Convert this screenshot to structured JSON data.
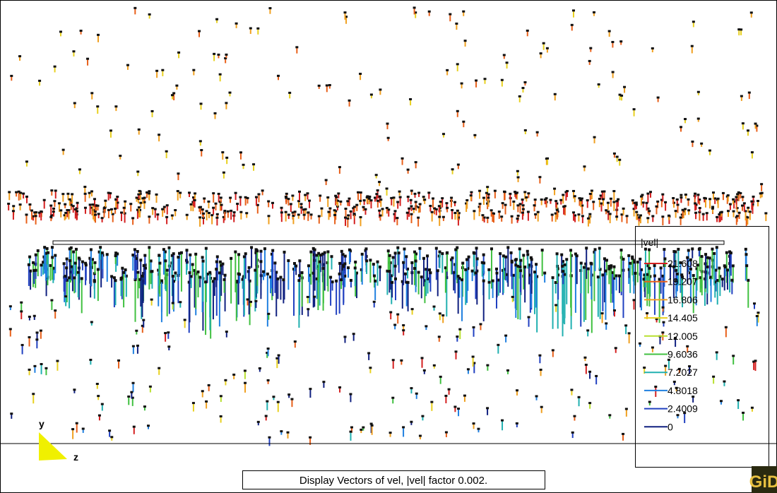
{
  "viewport": {
    "axes": {
      "y": "y",
      "z": "z"
    }
  },
  "legend": {
    "title": "|vel|",
    "items": [
      {
        "label": "21.608",
        "color": "#d42020"
      },
      {
        "label": "19.207",
        "color": "#e8601a"
      },
      {
        "label": "16.806",
        "color": "#f0a020"
      },
      {
        "label": "14.405",
        "color": "#e8d020"
      },
      {
        "label": "12.005",
        "color": "#b8e030"
      },
      {
        "label": "9.6036",
        "color": "#40c040"
      },
      {
        "label": "7.2027",
        "color": "#20b0b0"
      },
      {
        "label": "4.8018",
        "color": "#2080e0"
      },
      {
        "label": "2.4009",
        "color": "#2040c0"
      },
      {
        "label": "0",
        "color": "#102080"
      }
    ]
  },
  "status": {
    "message": "Display Vectors of vel, |vel| factor 0.002."
  },
  "logo": {
    "text": "GiD"
  }
}
